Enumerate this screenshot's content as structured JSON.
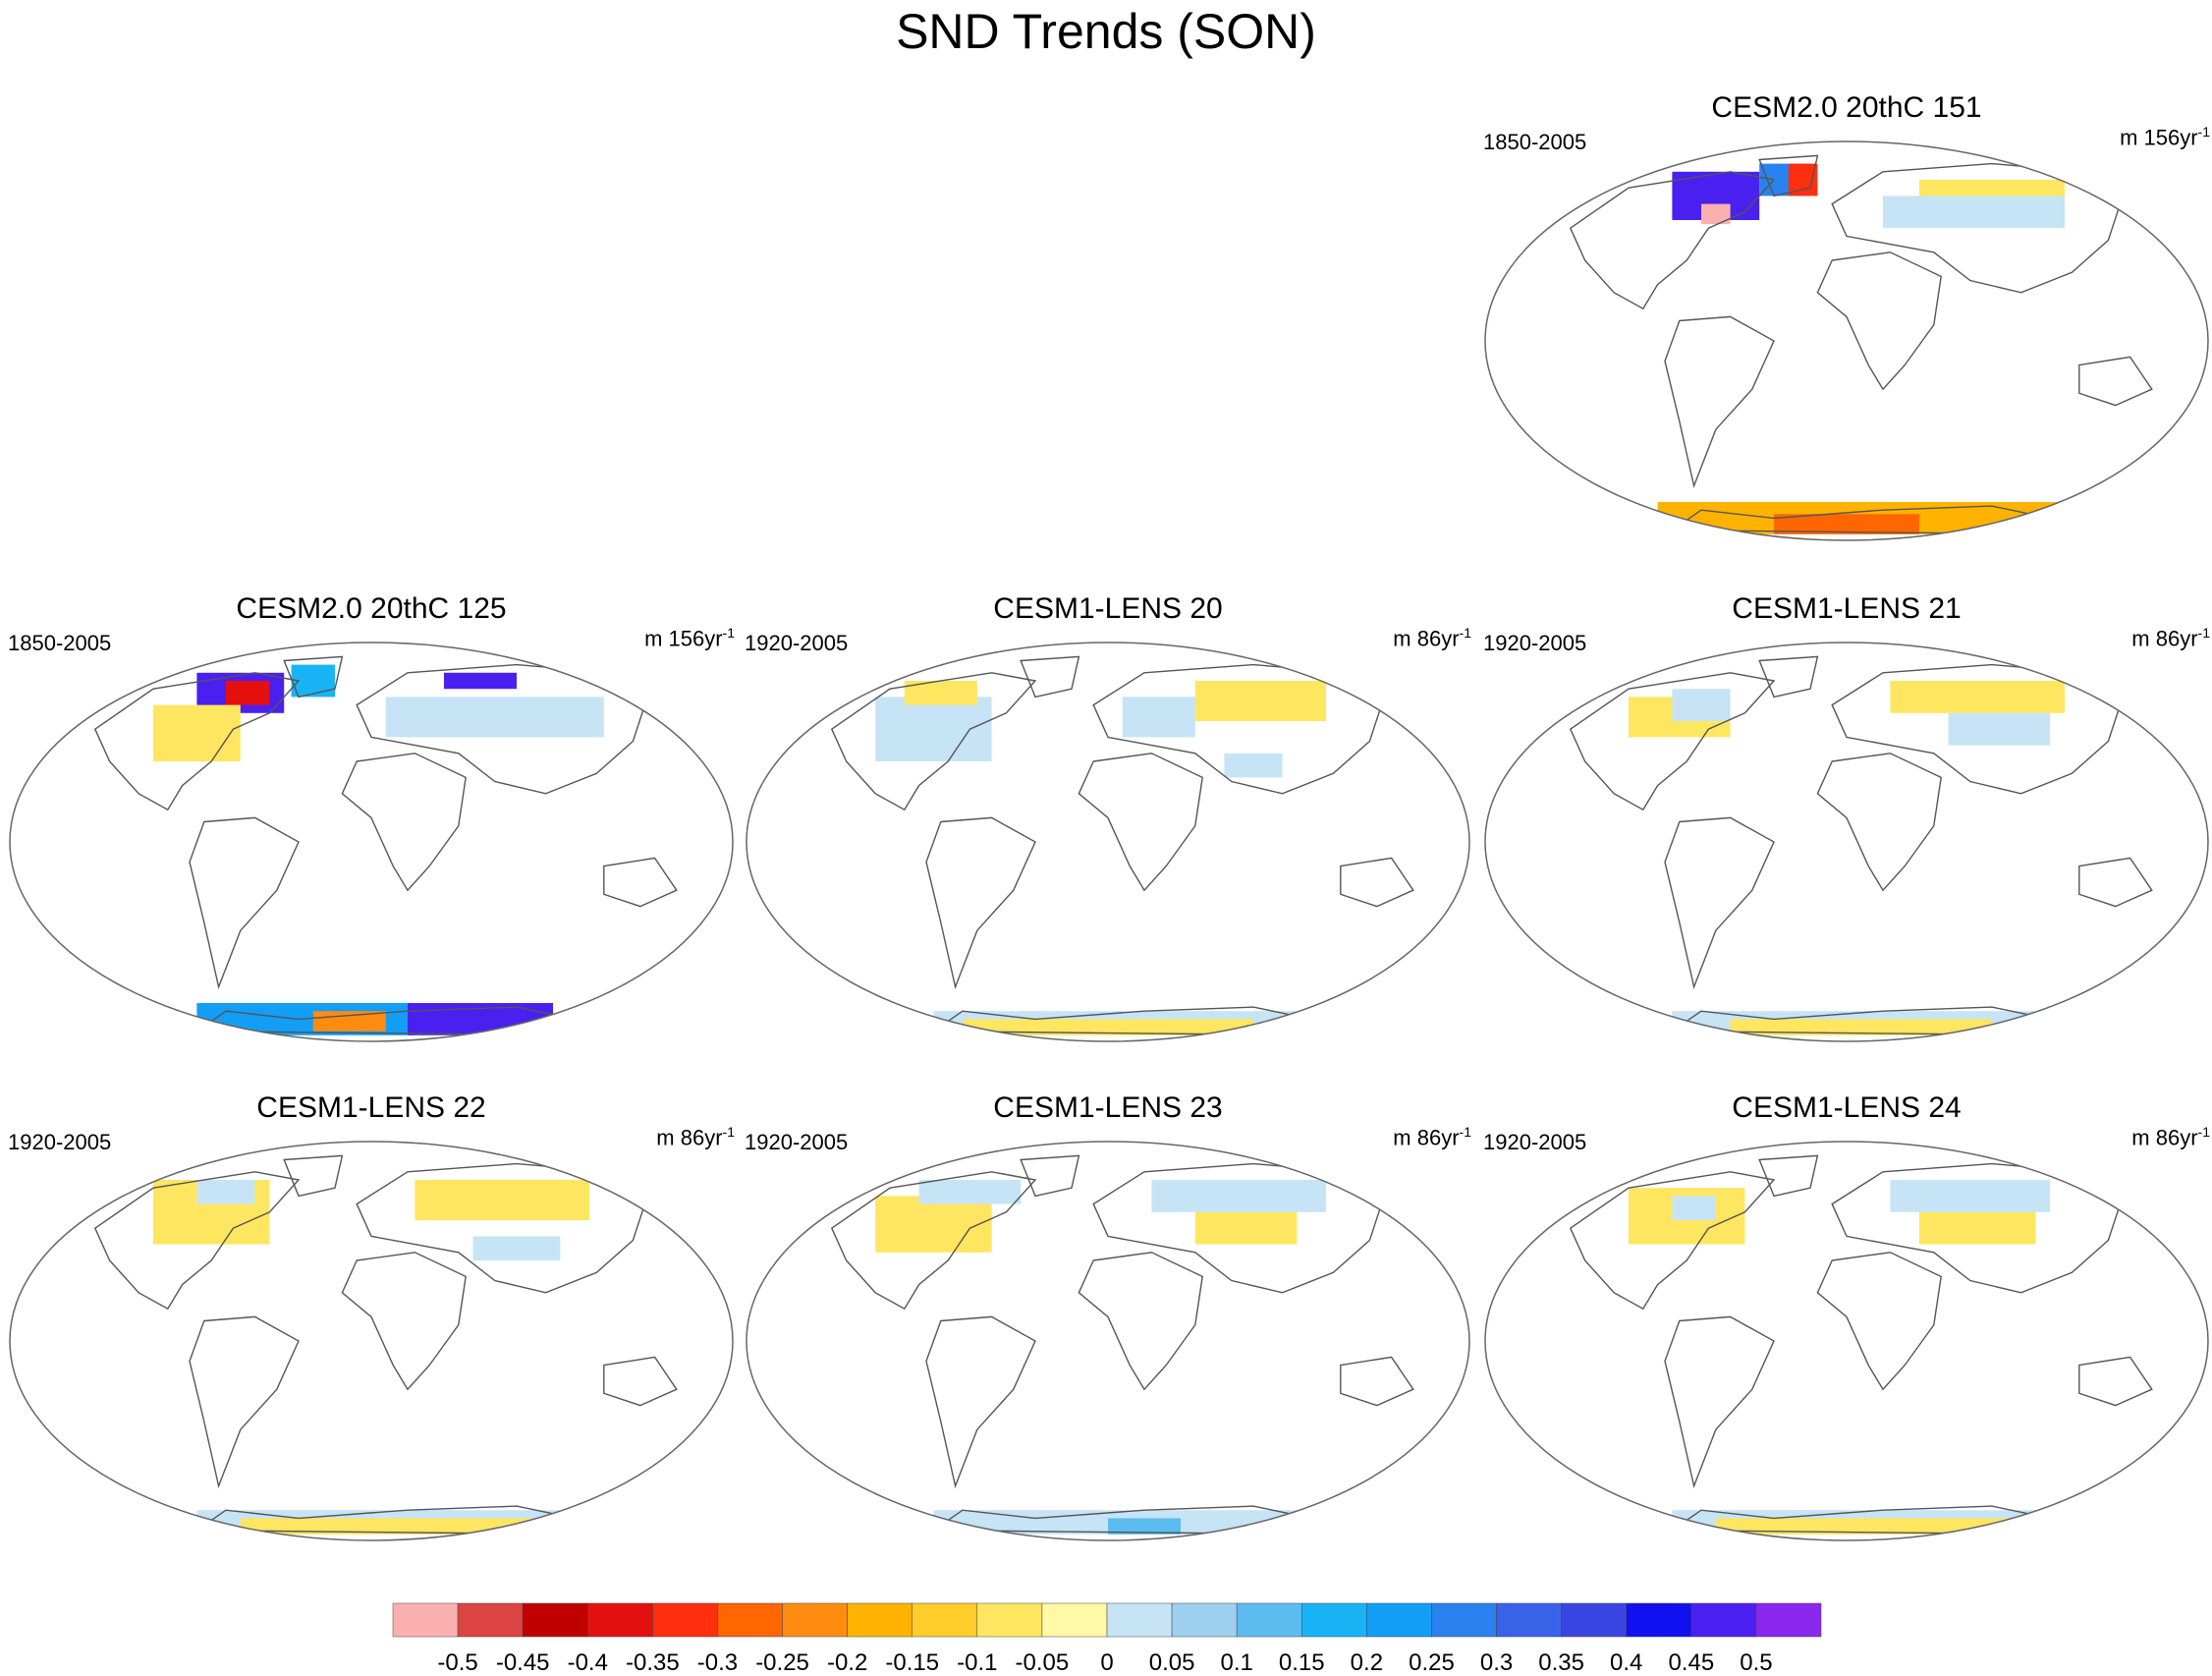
{
  "figure": {
    "title": "SND Trends (SON)"
  },
  "colorbar": {
    "labels": [
      "-0.5",
      "-0.45",
      "-0.4",
      "-0.35",
      "-0.3",
      "-0.25",
      "-0.2",
      "-0.15",
      "-0.1",
      "-0.05",
      "0",
      "0.05",
      "0.1",
      "0.15",
      "0.2",
      "0.25",
      "0.3",
      "0.35",
      "0.4",
      "0.45",
      "0.5"
    ],
    "colors": [
      "#fbb0b0",
      "#dd4444",
      "#c00000",
      "#e41010",
      "#ff2e0e",
      "#ff6600",
      "#ff8c10",
      "#ffb300",
      "#ffcd2a",
      "#ffe660",
      "#fff8a6",
      "#c6e4f6",
      "#9dd0ee",
      "#5cbcf0",
      "#18b4f6",
      "#139ef6",
      "#2a82f0",
      "#3a62e8",
      "#3a44e0",
      "#1010f0",
      "#4a20f0",
      "#8a28ee"
    ]
  },
  "panels": [
    {
      "id": "cesm2-151",
      "title": "CESM2.0 20thC 151",
      "period": "1850-2005",
      "units": "m 156yr",
      "units_exp": "-1"
    },
    {
      "id": "cesm2-125",
      "title": "CESM2.0 20thC 125",
      "period": "1850-2005",
      "units": "m 156yr",
      "units_exp": "-1"
    },
    {
      "id": "lens-20",
      "title": "CESM1-LENS 20",
      "period": "1920-2005",
      "units": "m 86yr",
      "units_exp": "-1"
    },
    {
      "id": "lens-21",
      "title": "CESM1-LENS 21",
      "period": "1920-2005",
      "units": "m 86yr",
      "units_exp": "-1"
    },
    {
      "id": "lens-22",
      "title": "CESM1-LENS 22",
      "period": "1920-2005",
      "units": "m 86yr",
      "units_exp": "-1"
    },
    {
      "id": "lens-23",
      "title": "CESM1-LENS 23",
      "period": "1920-2005",
      "units": "m 86yr",
      "units_exp": "-1"
    },
    {
      "id": "lens-24",
      "title": "CESM1-LENS 24",
      "period": "1920-2005",
      "units": "m 86yr",
      "units_exp": "-1"
    }
  ]
}
